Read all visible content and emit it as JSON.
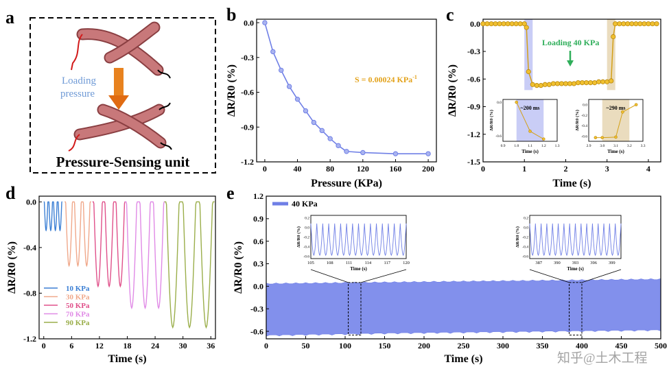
{
  "panels": {
    "a": {
      "letter": "a",
      "arrow_label_line1": "Loading",
      "arrow_label_line2": "pressure",
      "caption": "Pressure-Sensing unit"
    },
    "b": {
      "letter": "b"
    },
    "c": {
      "letter": "c"
    },
    "d": {
      "letter": "d"
    },
    "e": {
      "letter": "e"
    }
  },
  "watermark": "知乎@土木工程",
  "chart_data": [
    {
      "panel": "b",
      "type": "line",
      "xlabel": "Pressure (KPa)",
      "ylabel": "ΔR/R0 (%)",
      "xlim": [
        -10,
        210
      ],
      "ylim": [
        -1.2,
        0.03
      ],
      "xticks": [
        0,
        40,
        80,
        120,
        160,
        200
      ],
      "yticks": [
        0.0,
        -0.3,
        -0.6,
        -0.9,
        -1.2
      ],
      "x": [
        0,
        10,
        20,
        30,
        40,
        50,
        60,
        70,
        80,
        90,
        100,
        120,
        160,
        200
      ],
      "y": [
        0.0,
        -0.25,
        -0.41,
        -0.55,
        -0.66,
        -0.76,
        -0.86,
        -0.93,
        -1.0,
        -1.06,
        -1.11,
        -1.12,
        -1.13,
        -1.13
      ],
      "color": "#6f7fe6",
      "annotation": "S = 0.00024 KPa",
      "annotation_sup": "-1",
      "annotation_color": "#e3a21a"
    },
    {
      "panel": "c",
      "type": "line",
      "xlabel": "Time (s)",
      "ylabel": "ΔR/R0 (%)",
      "xlim": [
        0,
        4.3
      ],
      "ylim": [
        -1.5,
        0.05
      ],
      "xticks": [
        0,
        1,
        2,
        3,
        4
      ],
      "yticks": [
        0.0,
        -0.3,
        -0.6,
        -0.9,
        -1.2,
        -1.5
      ],
      "x": [
        0,
        0.1,
        0.2,
        0.3,
        0.4,
        0.5,
        0.6,
        0.7,
        0.8,
        0.9,
        1.0,
        1.05,
        1.1,
        1.2,
        1.3,
        1.4,
        1.5,
        1.6,
        1.7,
        1.8,
        1.9,
        2.0,
        2.1,
        2.2,
        2.3,
        2.4,
        2.5,
        2.6,
        2.7,
        2.8,
        2.9,
        3.0,
        3.1,
        3.15,
        3.2,
        3.3,
        3.4,
        3.5,
        3.6,
        3.7,
        3.8,
        3.9,
        4.0,
        4.1,
        4.2
      ],
      "y": [
        0,
        0,
        0,
        0,
        0,
        0,
        0,
        0,
        0,
        0,
        0,
        -0.04,
        -0.52,
        -0.66,
        -0.67,
        -0.67,
        -0.66,
        -0.66,
        -0.65,
        -0.65,
        -0.65,
        -0.65,
        -0.65,
        -0.65,
        -0.64,
        -0.64,
        -0.64,
        -0.64,
        -0.64,
        -0.63,
        -0.63,
        -0.63,
        -0.62,
        -0.14,
        0,
        0,
        0,
        0,
        0,
        0,
        0,
        0,
        0,
        0,
        0
      ],
      "color": "#d4a017",
      "annotation": "Loading 40 KPa",
      "annotation_color": "#2fae5a",
      "loading_band": [
        1.0,
        1.2
      ],
      "unloading_band": [
        3.0,
        3.2
      ],
      "insets": [
        {
          "label": "~200 ms",
          "xlabel": "Time (s)",
          "ylabel": "ΔR/R0 (%)",
          "xlim": [
            0.9,
            1.3
          ],
          "ylim": [
            -0.7,
            0.05
          ],
          "xticks": [
            "0.9",
            "1.0",
            "1.1",
            "1.2",
            "1.3"
          ],
          "yticks": [
            "0.0",
            "-0.6"
          ],
          "x": [
            1.0,
            1.1,
            1.2
          ],
          "y": [
            0.0,
            -0.52,
            -0.66
          ],
          "band": [
            1.0,
            1.2
          ]
        },
        {
          "label": "~290 ms",
          "xlabel": "Time (s)",
          "ylabel": "ΔR/R0 (%)",
          "xlim": [
            2.9,
            3.3
          ],
          "ylim": [
            -0.7,
            0.1
          ],
          "xticks": [
            "2.9",
            "3.0",
            "3.1",
            "3.2",
            "3.3"
          ],
          "yticks": [
            "0.0",
            "-0.2",
            "-0.4",
            "-0.6"
          ],
          "x": [
            2.95,
            3.0,
            3.1,
            3.15,
            3.25
          ],
          "y": [
            -0.63,
            -0.63,
            -0.62,
            -0.14,
            0.0
          ],
          "band": [
            3.0,
            3.2
          ]
        }
      ]
    },
    {
      "panel": "d",
      "type": "line",
      "xlabel": "Time (s)",
      "ylabel": "ΔR/R0 (%)",
      "xlim": [
        -1,
        37
      ],
      "ylim": [
        -1.2,
        0.05
      ],
      "xticks": [
        0,
        6,
        12,
        18,
        24,
        30,
        36
      ],
      "yticks": [
        0.0,
        -0.4,
        -0.8,
        -1.2
      ],
      "series": [
        {
          "name": "10 KPa",
          "color": "#3b7fd4",
          "start": 0,
          "period": 1.0,
          "cycles": 4,
          "amplitude": -0.25
        },
        {
          "name": "30 KPa",
          "color": "#f0a88a",
          "start": 4.5,
          "period": 1.9,
          "cycles": 3,
          "amplitude": -0.56
        },
        {
          "name": "50 KPa",
          "color": "#e0508a",
          "start": 10.5,
          "period": 2.4,
          "cycles": 3,
          "amplitude": -0.74
        },
        {
          "name": "70 KPa",
          "color": "#e08ae6",
          "start": 17.5,
          "period": 2.9,
          "cycles": 3,
          "amplitude": -0.93
        },
        {
          "name": "90 KPa",
          "color": "#9aae4a",
          "start": 26,
          "period": 3.6,
          "cycles": 3,
          "amplitude": -1.1
        }
      ]
    },
    {
      "panel": "e",
      "type": "area",
      "xlabel": "Time (s)",
      "ylabel": "ΔR/R0 (%)",
      "xlim": [
        0,
        500
      ],
      "ylim": [
        -0.7,
        1.2
      ],
      "xticks": [
        0,
        50,
        100,
        150,
        200,
        250,
        300,
        350,
        400,
        450,
        500
      ],
      "yticks": [
        1.2,
        0.9,
        0.6,
        0.3,
        0.0,
        -0.3,
        -0.6
      ],
      "series": [
        {
          "name": "40 KPa",
          "color": "#6f7fe6",
          "upper": [
            0.03,
            0.05,
            0.07,
            0.09
          ],
          "lower": [
            -0.65,
            -0.62,
            -0.6,
            -0.58
          ]
        }
      ],
      "insets": [
        {
          "xlabel": "Time (s)",
          "ylabel": "ΔR/R0 (%)",
          "xlim": [
            105,
            120
          ],
          "xticks": [
            "105",
            "108",
            "111",
            "114",
            "117",
            "120"
          ],
          "yticks": [
            "0.2",
            "0.0",
            "-0.2",
            "-0.4",
            "-0.6"
          ],
          "window": [
            104,
            120
          ]
        },
        {
          "xlabel": "Time (s)",
          "ylabel": "ΔR/R0 (%)",
          "xlim": [
            385.5,
            400.5
          ],
          "xticks": [
            "387",
            "390",
            "393",
            "396",
            "399"
          ],
          "yticks": [
            "0.2",
            "0.0",
            "-0.2",
            "-0.4",
            "-0.6"
          ],
          "window": [
            384,
            400
          ]
        }
      ]
    }
  ]
}
